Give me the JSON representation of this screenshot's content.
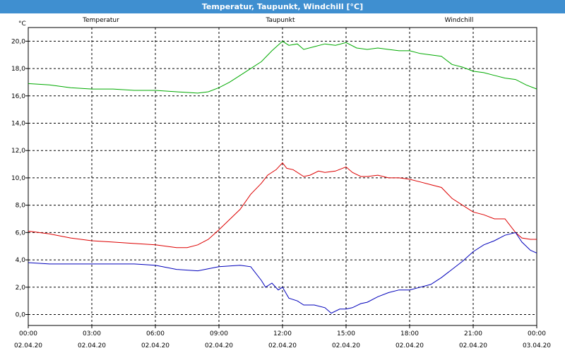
{
  "window_title": "Temperatur, Taupunkt, Windchill [°C]",
  "colors": {
    "titlebar": "#3f8fd0"
  },
  "chart_data": {
    "type": "line",
    "ylabel": "°C",
    "ylim": [
      -0.8,
      21.0
    ],
    "xlim": [
      0,
      24
    ],
    "grid": true,
    "y_ticks": [
      "0,0",
      "2,0",
      "4,0",
      "6,0",
      "8,0",
      "10,0",
      "12,0",
      "14,0",
      "16,0",
      "18,0",
      "20,0"
    ],
    "x_ticks": [
      {
        "time": "00:00",
        "date": "02.04.20"
      },
      {
        "time": "03:00",
        "date": "02.04.20"
      },
      {
        "time": "06:00",
        "date": "02.04.20"
      },
      {
        "time": "09:00",
        "date": "02.04.20"
      },
      {
        "time": "12:00",
        "date": "02.04.20"
      },
      {
        "time": "15:00",
        "date": "02.04.20"
      },
      {
        "time": "18:00",
        "date": "02.04.20"
      },
      {
        "time": "21:00",
        "date": "02.04.20"
      },
      {
        "time": "00:00",
        "date": "03.04.20"
      }
    ],
    "series": [
      {
        "name": "Temperatur",
        "color": "#dd0000",
        "x": [
          0,
          1,
          2,
          3,
          4,
          5,
          6,
          7,
          7.5,
          8,
          8.5,
          9,
          10,
          10.5,
          11,
          11.3,
          11.7,
          12,
          12.2,
          12.5,
          13,
          13.3,
          13.7,
          14,
          14.5,
          15,
          15.3,
          15.7,
          16,
          16.5,
          17,
          17.5,
          18,
          18.5,
          19,
          19.5,
          20,
          20.5,
          21,
          21.5,
          22,
          22.5,
          23,
          23.3,
          23.7,
          24
        ],
        "y": [
          6.1,
          5.9,
          5.6,
          5.4,
          5.3,
          5.2,
          5.1,
          4.9,
          4.9,
          5.1,
          5.5,
          6.2,
          7.7,
          8.8,
          9.6,
          10.2,
          10.6,
          11.1,
          10.7,
          10.6,
          10.1,
          10.2,
          10.5,
          10.4,
          10.5,
          10.8,
          10.4,
          10.1,
          10.1,
          10.2,
          10.0,
          10.0,
          9.9,
          9.7,
          9.5,
          9.3,
          8.5,
          8.0,
          7.5,
          7.3,
          7.0,
          7.0,
          6.0,
          5.6,
          5.5,
          5.5
        ]
      },
      {
        "name": "Taupunkt",
        "color": "#0000bb",
        "x": [
          0,
          1,
          2,
          3,
          4,
          5,
          6,
          7,
          8,
          9,
          10,
          10.5,
          11,
          11.2,
          11.5,
          11.8,
          12,
          12.3,
          12.7,
          13,
          13.5,
          14,
          14.3,
          14.7,
          15,
          15.3,
          15.7,
          16,
          16.5,
          17,
          17.5,
          18,
          18.5,
          19,
          19.5,
          20,
          20.5,
          21,
          21.5,
          22,
          22.5,
          23,
          23.3,
          23.7,
          24
        ],
        "y": [
          3.8,
          3.7,
          3.7,
          3.7,
          3.7,
          3.7,
          3.6,
          3.3,
          3.2,
          3.5,
          3.6,
          3.5,
          2.5,
          2.0,
          2.3,
          1.8,
          2.0,
          1.2,
          1.0,
          0.7,
          0.7,
          0.5,
          0.1,
          0.4,
          0.4,
          0.5,
          0.8,
          0.9,
          1.3,
          1.6,
          1.8,
          1.8,
          2.0,
          2.2,
          2.7,
          3.3,
          3.9,
          4.6,
          5.1,
          5.4,
          5.8,
          6.0,
          5.3,
          4.7,
          4.5
        ]
      },
      {
        "name": "Windchill",
        "color": "#00aa00",
        "x": [
          0,
          1,
          2,
          3,
          4,
          5,
          6,
          7,
          8,
          8.5,
          9,
          9.5,
          10,
          10.5,
          11,
          11.5,
          12,
          12.3,
          12.7,
          13,
          13.5,
          14,
          14.5,
          15,
          15.5,
          16,
          16.5,
          17,
          17.5,
          18,
          18.5,
          19,
          19.5,
          20,
          20.5,
          21,
          21.5,
          22,
          22.5,
          23,
          23.5,
          24
        ],
        "y": [
          16.9,
          16.8,
          16.6,
          16.5,
          16.5,
          16.4,
          16.4,
          16.3,
          16.2,
          16.3,
          16.6,
          17.0,
          17.5,
          18.0,
          18.5,
          19.3,
          20.0,
          19.7,
          19.8,
          19.4,
          19.6,
          19.8,
          19.7,
          19.9,
          19.5,
          19.4,
          19.5,
          19.4,
          19.3,
          19.3,
          19.1,
          19.0,
          18.9,
          18.3,
          18.1,
          17.8,
          17.7,
          17.5,
          17.3,
          17.2,
          16.8,
          16.5
        ]
      }
    ]
  }
}
